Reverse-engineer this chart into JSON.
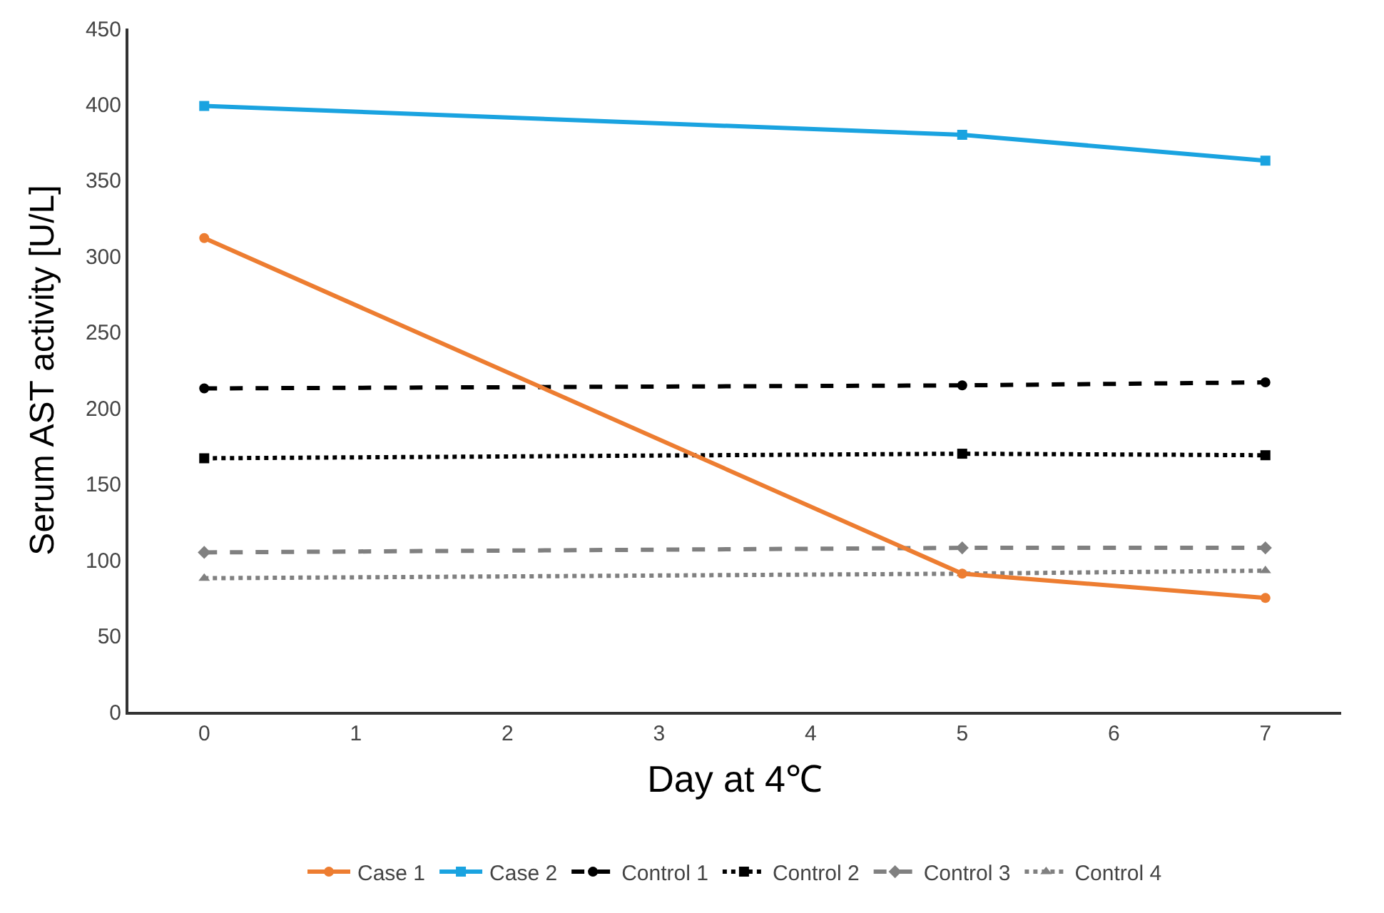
{
  "chart_data": {
    "type": "line",
    "xlabel": "Day at 4℃",
    "ylabel": "Serum AST activity [U/L]",
    "x": [
      0,
      5,
      7
    ],
    "xlim": [
      -0.5,
      7.5
    ],
    "xticks": [
      0,
      1,
      2,
      3,
      4,
      5,
      6,
      7
    ],
    "ylim": [
      0,
      450
    ],
    "yticks": [
      0,
      50,
      100,
      150,
      200,
      250,
      300,
      350,
      400,
      450
    ],
    "grid": false,
    "legend": "bottom",
    "series": [
      {
        "name": "Case 1",
        "color": "#ed7d31",
        "values": [
          312,
          91,
          75
        ],
        "marker": "circle",
        "line_style": "solid"
      },
      {
        "name": "Case 2",
        "color": "#1aa3e0",
        "values": [
          399,
          380,
          363
        ],
        "marker": "square",
        "line_style": "solid"
      },
      {
        "name": "Control 1",
        "color": "#000000",
        "values": [
          213,
          215,
          217
        ],
        "marker": "circle",
        "line_style": "dashed"
      },
      {
        "name": "Control 2",
        "color": "#000000",
        "values": [
          167,
          170,
          169
        ],
        "marker": "square",
        "line_style": "dotted"
      },
      {
        "name": "Control 3",
        "color": "#808080",
        "values": [
          105,
          108,
          108
        ],
        "marker": "diamond",
        "line_style": "dashed"
      },
      {
        "name": "Control 4",
        "color": "#808080",
        "values": [
          88,
          91,
          93
        ],
        "marker": "triangle",
        "line_style": "dotted"
      }
    ]
  }
}
